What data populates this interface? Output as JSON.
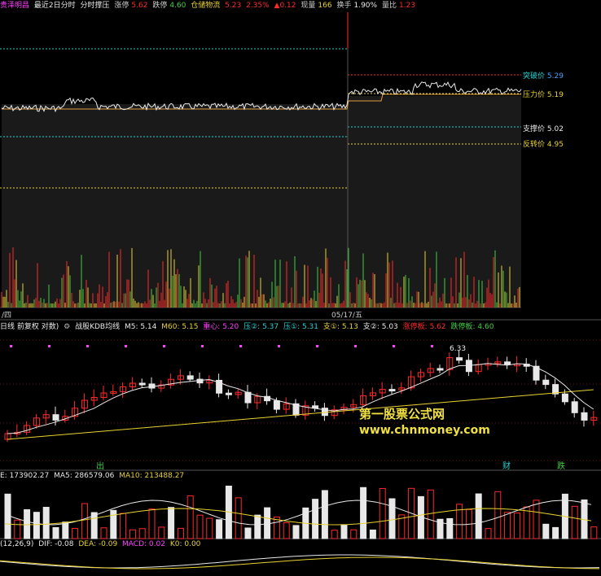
{
  "colors": {
    "up": "#ff2a2a",
    "down": "#e8e8e8",
    "yellow": "#e8d230",
    "cyan": "#2ad2d2",
    "magenta": "#ff40ff",
    "green": "#40d040",
    "pink": "#ff4090",
    "grid": "#6b1010",
    "white": "#ffffff",
    "orange": "#e0a040",
    "blue": "#4aa0ff"
  },
  "topbar": {
    "stock_name": "贵泽明昌",
    "period": "最近2日分时",
    "mode": "分时撑压",
    "limit_up_label": "涨停",
    "limit_up": "5.62",
    "limit_down_label": "跌停",
    "limit_down": "4.60",
    "flow_label": "仓储物流",
    "price": "5.23",
    "pct": "2.35%",
    "chg": "▲0.12",
    "vol_label": "现量",
    "vol": "166",
    "turnover_label": "换手",
    "turnover": "1.90%",
    "ratio_label": "量比",
    "ratio": "1.23"
  },
  "levels": {
    "breakout": {
      "label": "突破价",
      "value": "5.29"
    },
    "pressure": {
      "label": "压力价",
      "value": "5.19"
    },
    "support": {
      "label": "支撑价",
      "value": "5.02"
    },
    "reversal": {
      "label": "反转价",
      "value": "4.95"
    }
  },
  "intraday_axis": {
    "left": "/四",
    "right": "05/17/五"
  },
  "klinebar": {
    "title": "日线 前复权 对数)",
    "indicator": "战股KDB均线",
    "ma5": "M5: 5.14",
    "m60": "M60: 5.15",
    "center": "重心: 5.20",
    "p2": "压②: 5.37",
    "p1": "压①: 5.31",
    "s1": "支①: 5.13",
    "s2": "支②: 5.03",
    "up_limit": "涨停板: 5.62",
    "down_limit": "跌停板: 4.60"
  },
  "kline_annot": {
    "high_price": "6.33",
    "mark_chu": "出",
    "mark_cai": "财",
    "mark_die": "跌"
  },
  "watermark": {
    "line1": "第一股票公式网",
    "line2": "www.chnmoney.com"
  },
  "volbar": {
    "vol": "E: 173902.27",
    "ma5": "MA5: 286579.06",
    "ma10": "MA10: 213488.27"
  },
  "macdbar": {
    "params": "(12,26,9)",
    "dif": "DIF: -0.08",
    "dea": "DEA: -0.09",
    "macd": "MACD: 0.02",
    "k0": "K0: 0.00"
  }
}
